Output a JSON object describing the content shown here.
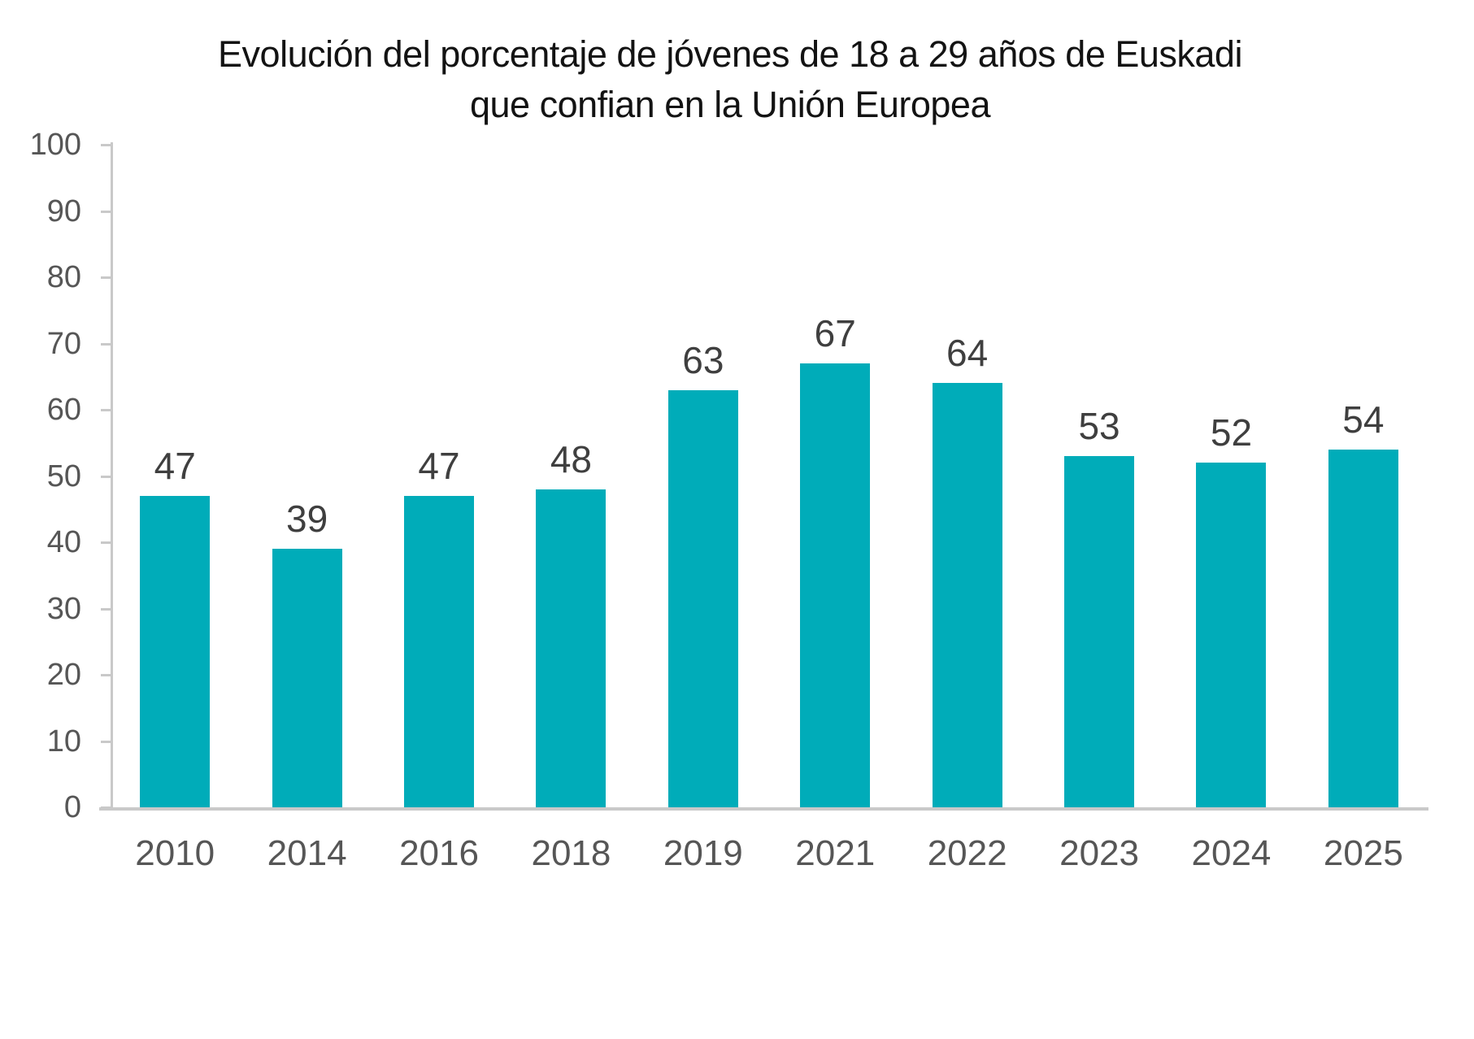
{
  "header": {
    "title_line1": "Evolución del porcentaje de jóvenes de 18 a 29 años de Euskadi",
    "title_line2": "que confian en la Unión Europea"
  },
  "colors": {
    "bar": "#00acb9",
    "axis_line": "#c9c9c9",
    "tick_label": "#565656",
    "data_label": "#3f3f3f",
    "title": "#131313"
  },
  "chart_data": {
    "type": "bar",
    "title": "Evolución del porcentaje de jóvenes de 18 a 29 años de Euskadi que confian en la Unión Europea",
    "categories": [
      "2010",
      "2014",
      "2016",
      "2018",
      "2019",
      "2021",
      "2022",
      "2023",
      "2024",
      "2025"
    ],
    "values": [
      47,
      39,
      47,
      48,
      63,
      67,
      64,
      53,
      52,
      54
    ],
    "xlabel": "",
    "ylabel": "",
    "ylim": [
      0,
      100
    ],
    "yticks": [
      0,
      10,
      20,
      30,
      40,
      50,
      60,
      70,
      80,
      90,
      100
    ],
    "grid": false,
    "legend": false,
    "data_labels": true,
    "bar_color": "#00acb9"
  }
}
